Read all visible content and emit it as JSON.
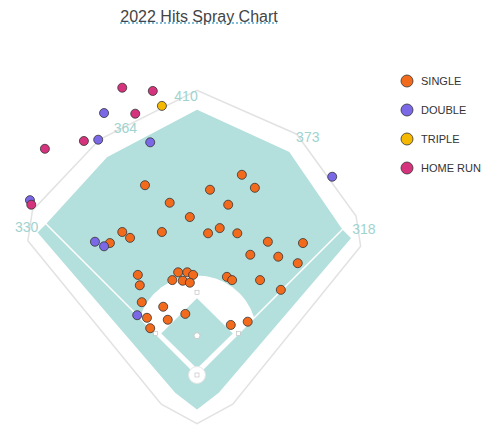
{
  "chart_data": {
    "type": "scatter",
    "title": "2022 Hits Spray Chart",
    "tick_labels": false,
    "legend": "top-right",
    "fence_distances": [
      330,
      364,
      410,
      373,
      318
    ],
    "series": [
      {
        "name": "SINGLE",
        "color": "#f26b1d",
        "x": [
          -80,
          -42,
          20,
          69,
          89,
          48,
          -11,
          -54,
          -115,
          -103,
          -134,
          17,
          35,
          62,
          109,
          163,
          82,
          125,
          155,
          -91,
          -29,
          -15,
          -6,
          -38,
          -22,
          -11,
          46,
          54,
          97,
          129,
          -85,
          -52,
          -77,
          -45,
          -18,
          -72,
          52,
          78,
          -88
        ],
        "y": [
          292,
          265,
          285,
          308,
          288,
          262,
          243,
          220,
          220,
          211,
          203,
          218,
          226,
          218,
          205,
          203,
          185,
          182,
          172,
          154,
          158,
          158,
          154,
          146,
          145,
          142,
          151,
          146,
          146,
          131,
          112,
          105,
          88,
          85,
          94,
          72,
          77,
          82,
          138
        ]
      },
      {
        "name": "DOUBLE",
        "color": "#7b68e6",
        "x": [
          -143,
          -152,
          -72,
          -257,
          -157,
          -143,
          208,
          -92
        ],
        "y": [
          403,
          362,
          358,
          269,
          205,
          198,
          305,
          92
        ]
      },
      {
        "name": "TRIPLE",
        "color": "#f5b800",
        "x": [
          -54
        ],
        "y": [
          414
        ]
      },
      {
        "name": "HOME RUN",
        "color": "#d6337f",
        "x": [
          -115,
          -68,
          -95,
          -174,
          -234,
          -255
        ],
        "y": [
          442,
          437,
          402,
          360,
          348,
          262
        ]
      }
    ]
  }
}
